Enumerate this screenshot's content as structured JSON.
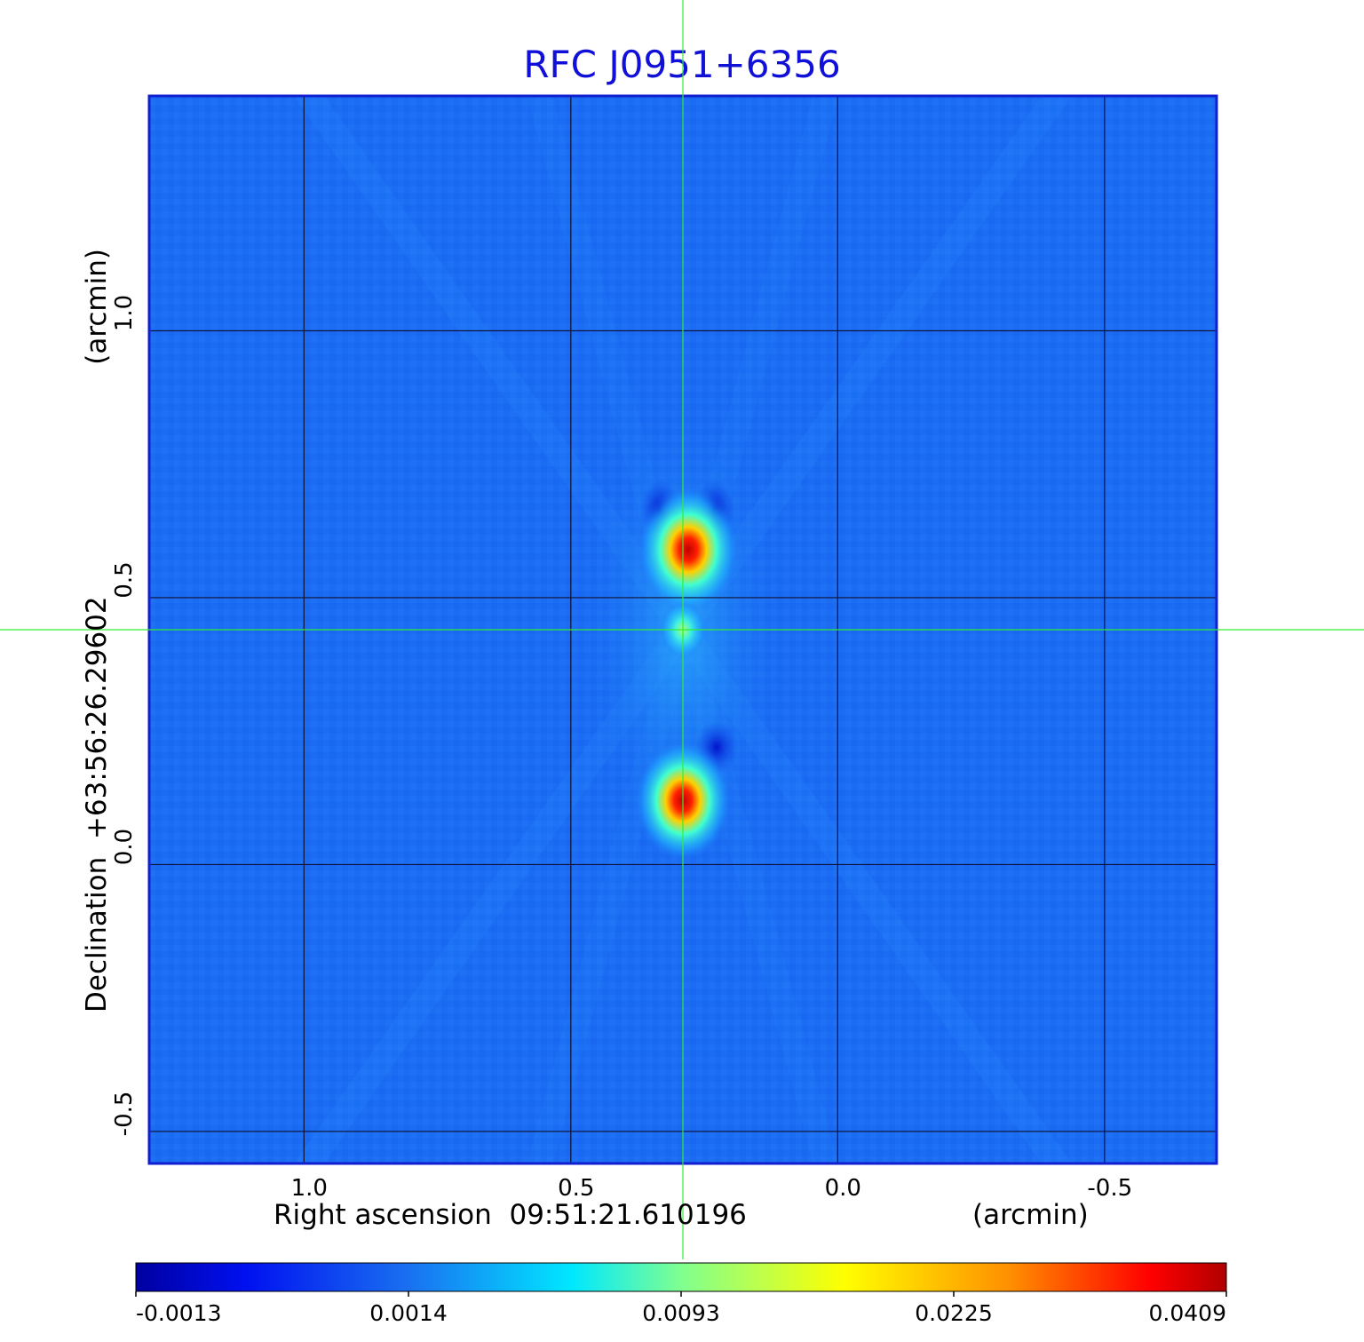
{
  "chart_data": {
    "type": "heatmap",
    "title": "RFC J0951+6356",
    "xlabel": "Right ascension  09:51:21.610196",
    "xunit": "(arcmin)",
    "ylabel": "Declination  +63:56:26.29602",
    "yunit": "(arcmin)",
    "x_axis_reversed": true,
    "xlim": [
      1.29,
      -0.71
    ],
    "ylim": [
      -0.56,
      1.44
    ],
    "x_ticks": [
      1.0,
      0.5,
      0.0,
      -0.5
    ],
    "x_tick_labels": [
      "1.0",
      "0.5",
      "0.0",
      "-0.5"
    ],
    "y_ticks": [
      1.0,
      0.5,
      0.0,
      -0.5
    ],
    "y_tick_labels": [
      "1.0",
      "0.5",
      "0.0",
      "-0.5"
    ],
    "grid": true,
    "crosshair": {
      "x": 0.29,
      "y": 0.44,
      "color": "#33ee33"
    },
    "colormap": "jet",
    "colorbar": {
      "ticks": [
        -0.0013,
        0.0014,
        0.0093,
        0.0225,
        0.0409
      ],
      "tick_labels": [
        "-0.0013",
        "0.0014",
        "0.0093",
        "0.0225",
        "0.0409"
      ]
    },
    "sources": [
      {
        "x": 0.28,
        "y": 0.59,
        "peak": 0.0409
      },
      {
        "x": 0.29,
        "y": 0.44,
        "peak": 0.0093
      },
      {
        "x": 0.29,
        "y": 0.12,
        "peak": 0.036
      }
    ],
    "background_level": 0.0005
  }
}
